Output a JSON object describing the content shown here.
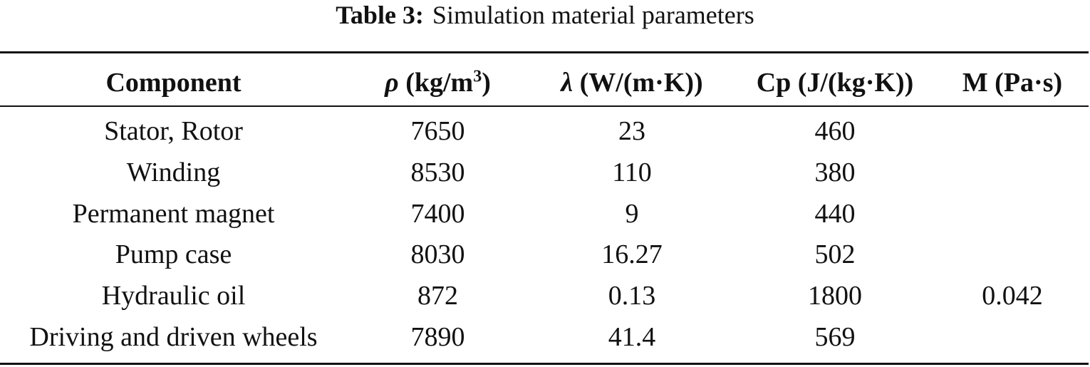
{
  "caption": {
    "label": "Table 3:",
    "text": "Simulation material parameters"
  },
  "table": {
    "headers": {
      "component": "Component",
      "density_symbol": "ρ",
      "density_unit_pre": "(kg/m",
      "density_unit_sup": "3",
      "density_unit_post": ")",
      "conductivity_symbol": "λ",
      "conductivity_unit": "(W/(m·K))",
      "heat_capacity": "Cp (J/(kg·K))",
      "viscosity": "M (Pa·s)"
    },
    "rows": [
      {
        "component": "Stator, Rotor",
        "density": "7650",
        "conductivity": "23",
        "heat_capacity": "460",
        "viscosity": ""
      },
      {
        "component": "Winding",
        "density": "8530",
        "conductivity": "110",
        "heat_capacity": "380",
        "viscosity": ""
      },
      {
        "component": "Permanent magnet",
        "density": "7400",
        "conductivity": "9",
        "heat_capacity": "440",
        "viscosity": ""
      },
      {
        "component": "Pump case",
        "density": "8030",
        "conductivity": "16.27",
        "heat_capacity": "502",
        "viscosity": ""
      },
      {
        "component": "Hydraulic oil",
        "density": "872",
        "conductivity": "0.13",
        "heat_capacity": "1800",
        "viscosity": "0.042"
      },
      {
        "component": "Driving and driven wheels",
        "density": "7890",
        "conductivity": "41.4",
        "heat_capacity": "569",
        "viscosity": ""
      }
    ]
  }
}
